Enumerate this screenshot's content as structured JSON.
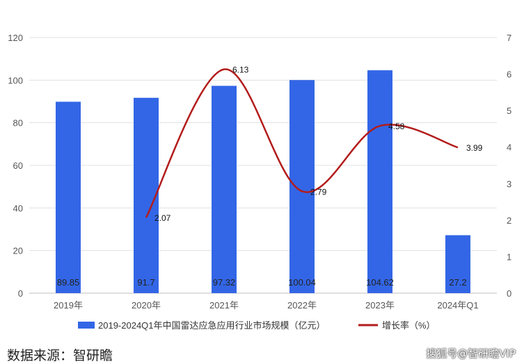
{
  "chart_data": {
    "type": "bar",
    "categories": [
      "2019年",
      "2020年",
      "2021年",
      "2022年",
      "2023年",
      "2024年Q1"
    ],
    "series": [
      {
        "name": "2019-2024Q1年中国雷达应急应用行业市场规模（亿元）",
        "type": "bar",
        "axis": "left",
        "color": "#3366e6",
        "values": [
          89.85,
          91.7,
          97.32,
          100.04,
          104.62,
          27.2
        ],
        "labels": [
          "89.85",
          "91.7",
          "97.32",
          "100.04",
          "104.62",
          "27.2"
        ]
      },
      {
        "name": "增长率（%）",
        "type": "line",
        "axis": "right",
        "smooth": true,
        "color": "#b31b1b",
        "values": [
          null,
          2.07,
          6.13,
          2.79,
          4.58,
          3.99
        ],
        "labels": [
          "",
          "2.07",
          "6.13",
          "2.79",
          "4.58",
          "3.99"
        ]
      }
    ],
    "y_left": {
      "min": 0,
      "max": 120,
      "ticks": [
        "0",
        "20",
        "40",
        "60",
        "80",
        "100",
        "120"
      ]
    },
    "y_right": {
      "min": 0,
      "max": 7,
      "ticks": [
        "0",
        "1",
        "2",
        "3",
        "4",
        "5",
        "6",
        "7"
      ]
    },
    "grid": true,
    "legend_position": "bottom"
  },
  "footer": {
    "source": "数据来源：智研瞻",
    "watermark": "搜狐号@智研瞻VIP"
  }
}
